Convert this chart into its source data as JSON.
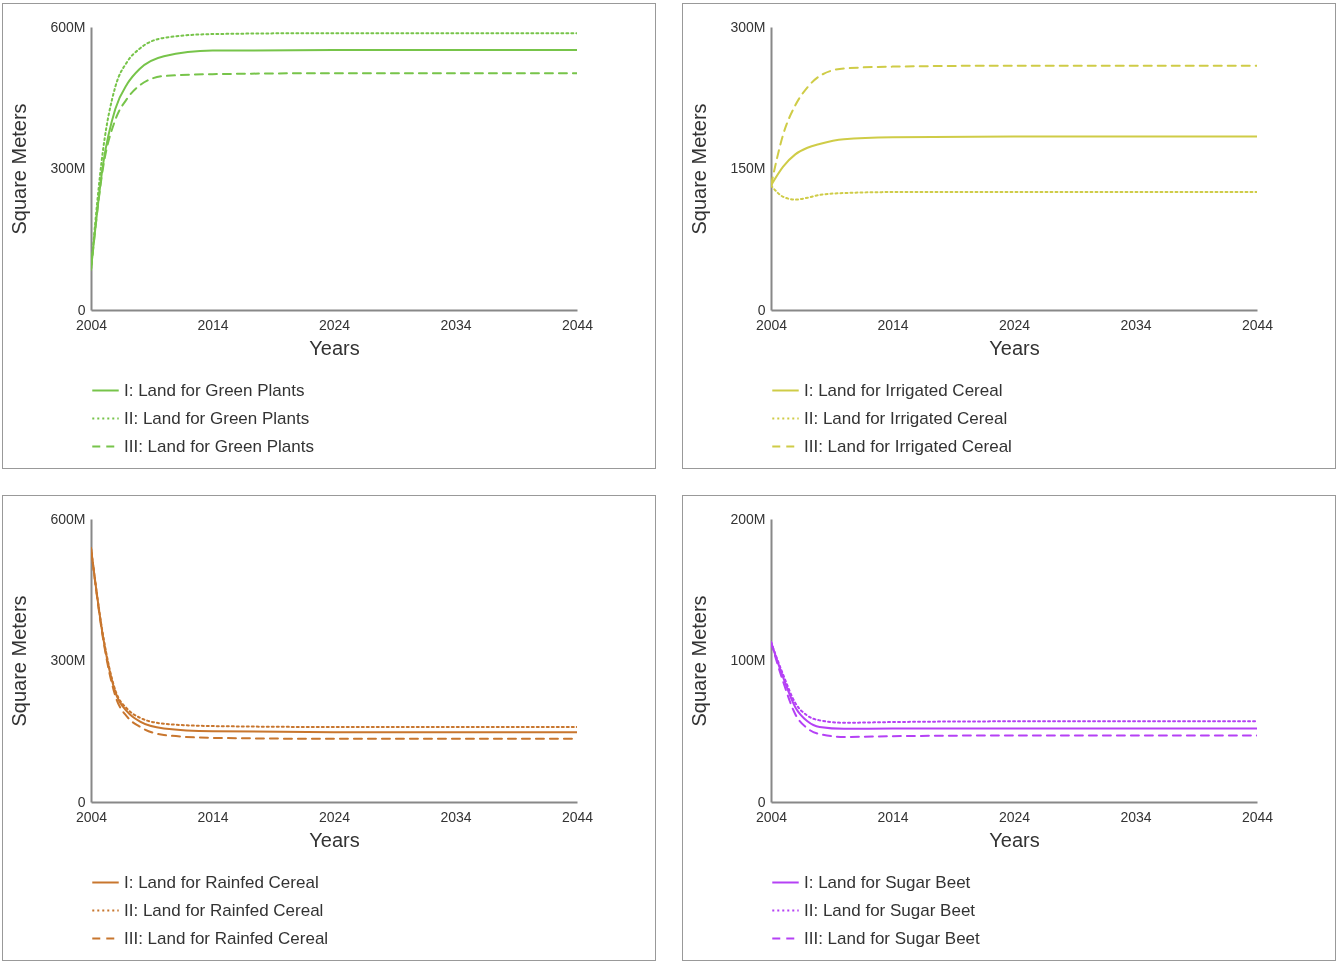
{
  "chart_data": [
    {
      "type": "line",
      "xlabel": "Years",
      "ylabel": "Square Meters",
      "x": [
        2004,
        2005,
        2006,
        2007,
        2008,
        2010,
        2014,
        2024,
        2044
      ],
      "xlim": [
        2004,
        2044
      ],
      "xticks": [
        2004,
        2014,
        2024,
        2034,
        2044
      ],
      "ylim": [
        0,
        600000000
      ],
      "yticks": [
        {
          "value": 0,
          "label": "0"
        },
        {
          "value": 300000000,
          "label": "300M"
        },
        {
          "value": 600000000,
          "label": "600M"
        }
      ],
      "grid": false,
      "legend": "bottom",
      "series": [
        {
          "name": "I: Land for Green Plants",
          "color": "#77c44a",
          "line_style": "solid",
          "values": [
            86000000,
            310000000,
            426000000,
            480000000,
            511000000,
            538000000,
            550000000,
            551000000,
            551000000
          ]
        },
        {
          "name": "II: Land for Green Plants",
          "color": "#77c44a",
          "line_style": "dotted",
          "values": [
            86000000,
            341000000,
            473000000,
            527000000,
            554000000,
            577000000,
            585000000,
            587000000,
            587000000
          ]
        },
        {
          "name": "III: Land for Green Plants",
          "color": "#77c44a",
          "line_style": "dashed",
          "values": [
            86000000,
            303000000,
            403000000,
            449000000,
            476000000,
            496000000,
            500000000,
            502000000,
            502000000
          ]
        }
      ]
    },
    {
      "type": "line",
      "xlabel": "Years",
      "ylabel": "Square Meters",
      "x": [
        2004,
        2005,
        2006,
        2007,
        2008,
        2010,
        2014,
        2024,
        2044
      ],
      "xlim": [
        2004,
        2044
      ],
      "xticks": [
        2004,
        2014,
        2024,
        2034,
        2044
      ],
      "ylim": [
        0,
        300000000
      ],
      "yticks": [
        {
          "value": 0,
          "label": "0"
        },
        {
          "value": 150000000,
          "label": "150M"
        },
        {
          "value": 300000000,
          "label": "300M"
        }
      ],
      "grid": false,
      "legend": "bottom",
      "series": [
        {
          "name": "I: Land for Irrigated Cereal",
          "color": "#cfcc47",
          "line_style": "solid",
          "values": [
            132000000,
            152000000,
            165000000,
            172000000,
            176000000,
            181000000,
            183000000,
            184000000,
            184000000
          ]
        },
        {
          "name": "II: Land for Irrigated Cereal",
          "color": "#cfcc47",
          "line_style": "dotted",
          "values": [
            132000000,
            120000000,
            117000000,
            119000000,
            122000000,
            124000000,
            125000000,
            125000000,
            125000000
          ]
        },
        {
          "name": "III: Land for Irrigated Cereal",
          "color": "#cfcc47",
          "line_style": "dashed",
          "values": [
            132000000,
            186000000,
            217000000,
            236000000,
            248000000,
            256000000,
            258000000,
            259000000,
            259000000
          ]
        }
      ]
    },
    {
      "type": "line",
      "xlabel": "Years",
      "ylabel": "Square Meters",
      "x": [
        2004,
        2005,
        2006,
        2007,
        2008,
        2010,
        2014,
        2024,
        2044
      ],
      "xlim": [
        2004,
        2044
      ],
      "xticks": [
        2004,
        2014,
        2024,
        2034,
        2044
      ],
      "ylim": [
        0,
        600000000
      ],
      "yticks": [
        {
          "value": 0,
          "label": "0"
        },
        {
          "value": 300000000,
          "label": "300M"
        },
        {
          "value": 600000000,
          "label": "600M"
        }
      ],
      "grid": false,
      "legend": "bottom",
      "series": [
        {
          "name": "I: Land for Rainfed Cereal",
          "color": "#c8762e",
          "line_style": "solid",
          "values": [
            538000000,
            349000000,
            233000000,
            191000000,
            171000000,
            156000000,
            150000000,
            148000000,
            148000000
          ]
        },
        {
          "name": "II: Land for Rainfed Cereal",
          "color": "#c8762e",
          "line_style": "dotted",
          "values": [
            538000000,
            352000000,
            237000000,
            197000000,
            179000000,
            166000000,
            161000000,
            159000000,
            159000000
          ]
        },
        {
          "name": "III: Land for Rainfed Cereal",
          "color": "#c8762e",
          "line_style": "dashed",
          "values": [
            538000000,
            345000000,
            225000000,
            180000000,
            160000000,
            142000000,
            136000000,
            134000000,
            134000000
          ]
        }
      ]
    },
    {
      "type": "line",
      "xlabel": "Years",
      "ylabel": "Square Meters",
      "x": [
        2004,
        2005,
        2006,
        2007,
        2008,
        2010,
        2014,
        2024,
        2044
      ],
      "xlim": [
        2004,
        2044
      ],
      "xticks": [
        2004,
        2014,
        2024,
        2034,
        2044
      ],
      "ylim": [
        0,
        200000000
      ],
      "yticks": [
        {
          "value": 0,
          "label": "0"
        },
        {
          "value": 100000000,
          "label": "100M"
        },
        {
          "value": 200000000,
          "label": "200M"
        }
      ],
      "grid": false,
      "legend": "bottom",
      "series": [
        {
          "name": "I: Land for Sugar Beet",
          "color": "#b541f5",
          "line_style": "solid",
          "values": [
            113000000,
            88000000,
            67000000,
            57000000,
            53000000,
            51700000,
            52000000,
            52000000,
            52000000
          ]
        },
        {
          "name": "II: Land for Sugar Beet",
          "color": "#b541f5",
          "line_style": "dotted",
          "values": [
            113000000,
            90000000,
            70000000,
            61000000,
            57700000,
            56000000,
            56500000,
            57000000,
            57000000
          ]
        },
        {
          "name": "III: Land for Sugar Beet",
          "color": "#b541f5",
          "line_style": "dashed",
          "values": [
            113000000,
            85000000,
            62000000,
            52000000,
            48000000,
            46000000,
            46500000,
            47000000,
            47000000
          ]
        }
      ]
    }
  ]
}
